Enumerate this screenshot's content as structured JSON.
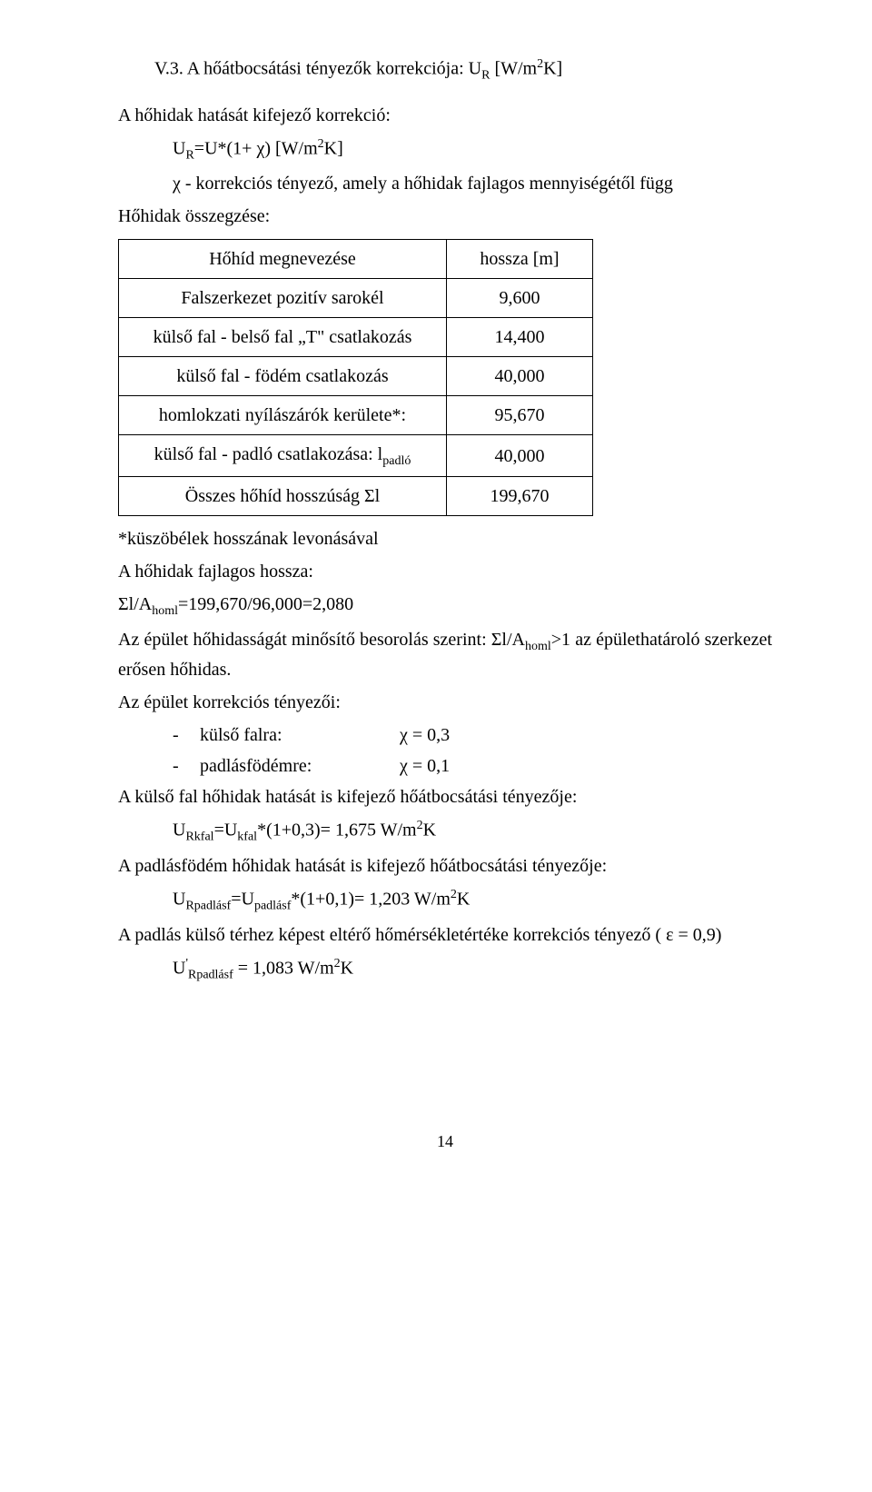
{
  "heading": {
    "prefix": "V.3. A hőátbocsátási tényezők korrekciója: U",
    "sub": "R",
    "unit_open": " [W/m",
    "unit_sup": "2",
    "unit_close": "K]"
  },
  "intro": "A hőhidak hatását kifejező korrekció:",
  "formula": {
    "lhs_pre": "U",
    "lhs_sub": "R",
    "lhs_post": "=U*(1+ χ)    [W/m",
    "lhs_sup": "2",
    "lhs_end": "K]"
  },
  "chi_line": "χ - korrekciós tényező, amely a hőhidak fajlagos mennyiségétől függ",
  "summary_label": "Hőhidak összegzése:",
  "table": {
    "header": {
      "c1": "Hőhíd megnevezése",
      "c2": "hossza [m]"
    },
    "rows": [
      {
        "c1": "Falszerkezet pozitív sarokél",
        "c2": "9,600"
      },
      {
        "c1": "külső fal - belső fal „T\" csatlakozás",
        "c2": "14,400"
      },
      {
        "c1": "külső fal - födém csatlakozás",
        "c2": "40,000"
      },
      {
        "c1": "homlokzati nyílászárók kerülete*:",
        "c2": "95,670"
      }
    ],
    "row_padlo": {
      "c1_pre": "külső fal - padló csatlakozása: l",
      "c1_sub": "padló",
      "c2": "40,000"
    },
    "row_sum": {
      "c1": "Összes hőhíd hosszúság Σl",
      "c2": "199,670"
    }
  },
  "after_table": {
    "l1": "*küszöbélek hosszának levonásával",
    "l2": "A hőhidak fajlagos hossza:",
    "l3_pre": "Σl/A",
    "l3_sub": "homl",
    "l3_post": "=199,670/96,000=2,080",
    "l4_pre": "Az épület hőhidasságát minősítő besorolás szerint: Σl/A",
    "l4_sub": "homl",
    "l4_post": ">1 az épülethatároló szerkezet erősen hőhidas.",
    "l5": "Az épület korrekciós tényezői:"
  },
  "bullets": [
    {
      "label": "külső falra:",
      "val": "χ = 0,3"
    },
    {
      "label": "padlásfödémre:",
      "val": "χ = 0,1"
    }
  ],
  "calc": {
    "l1": "A külső fal hőhidak hatását is kifejező hőátbocsátási tényezője:",
    "l2": {
      "pre": "U",
      "sub1": "Rkfal",
      "mid": "=U",
      "sub2": "kfal",
      "post": "*(1+0,3)= 1,675 W/m",
      "sup": "2",
      "end": "K"
    },
    "l3": "A padlásfödém hőhidak hatását is kifejező hőátbocsátási tényezője:",
    "l4": {
      "pre": "U",
      "sub1": "Rpadlásf",
      "mid": "=U",
      "sub2": "padlásf",
      "post": "*(1+0,1)= 1,203 W/m",
      "sup": "2",
      "end": "K"
    },
    "l5": "A padlás külső térhez képest eltérő hőmérsékletértéke korrekciós tényező ( ε = 0,9)",
    "l6": {
      "pre": "U",
      "sup1": "'",
      "sub1": "Rpadlásf",
      "mid": " = 1,083 W/m",
      "sup2": "2",
      "end": "K"
    }
  },
  "pagenum": "14"
}
